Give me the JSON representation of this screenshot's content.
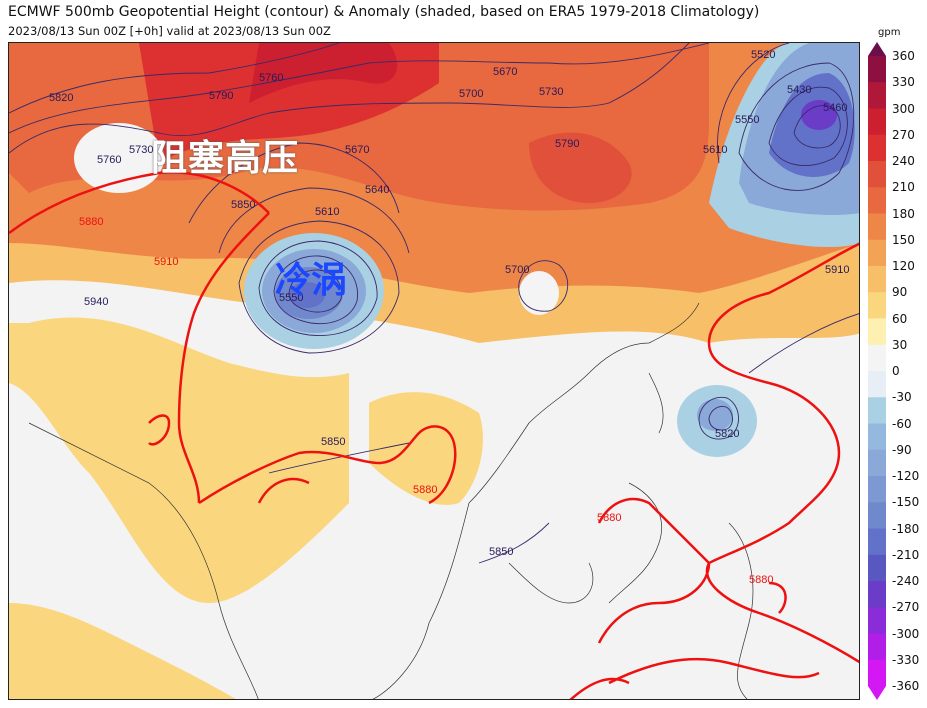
{
  "header": {
    "title": "ECMWF 500mb Geopotential Height (contour) & Anomaly (shaded, based on ERA5 1979-2018 Climatology)",
    "subtitle": "2023/08/13 Sun 00Z [+0h] valid at 2023/08/13 Sun 00Z"
  },
  "colorbar": {
    "unit": "gpm",
    "ticks": [
      "360",
      "330",
      "300",
      "270",
      "240",
      "210",
      "180",
      "150",
      "120",
      "90",
      "60",
      "30",
      "0",
      "-30",
      "-60",
      "-90",
      "-120",
      "-150",
      "-180",
      "-210",
      "-240",
      "-270",
      "-300",
      "-330",
      "-360"
    ],
    "colors": [
      "#6b0f4a",
      "#8e1040",
      "#b0183a",
      "#cc2030",
      "#dd3030",
      "#e0503a",
      "#e8683f",
      "#ee8648",
      "#f2a356",
      "#f6bf68",
      "#fad77f",
      "#fdf0b0",
      "#f4f4f4",
      "#e8eef6",
      "#aad0e4",
      "#95b8de",
      "#8aa8d8",
      "#7d98d2",
      "#7088cc",
      "#6272c8",
      "#5858c0",
      "#6a3cc8",
      "#8a2cd8",
      "#b01ee8",
      "#d418f4"
    ]
  },
  "annotations": {
    "blocking_high": "阻塞高压",
    "cold_vortex": "冷涡"
  },
  "contour_labels": [
    {
      "text": "5820"
    },
    {
      "text": "5760"
    },
    {
      "text": "5790"
    },
    {
      "text": "5730"
    },
    {
      "text": "5760"
    },
    {
      "text": "5880"
    },
    {
      "text": "5850"
    },
    {
      "text": "5670"
    },
    {
      "text": "5640"
    },
    {
      "text": "5610"
    },
    {
      "text": "5550"
    },
    {
      "text": "5910"
    },
    {
      "text": "5940"
    },
    {
      "text": "5670"
    },
    {
      "text": "5700"
    },
    {
      "text": "5730"
    },
    {
      "text": "5790"
    },
    {
      "text": "5700"
    },
    {
      "text": "5610"
    },
    {
      "text": "5550"
    },
    {
      "text": "5520"
    },
    {
      "text": "5430"
    },
    {
      "text": "5460"
    },
    {
      "text": "5910"
    },
    {
      "text": "5850"
    },
    {
      "text": "5880"
    },
    {
      "text": "5820"
    },
    {
      "text": "5880"
    },
    {
      "text": "5880"
    },
    {
      "text": "5850"
    }
  ]
}
